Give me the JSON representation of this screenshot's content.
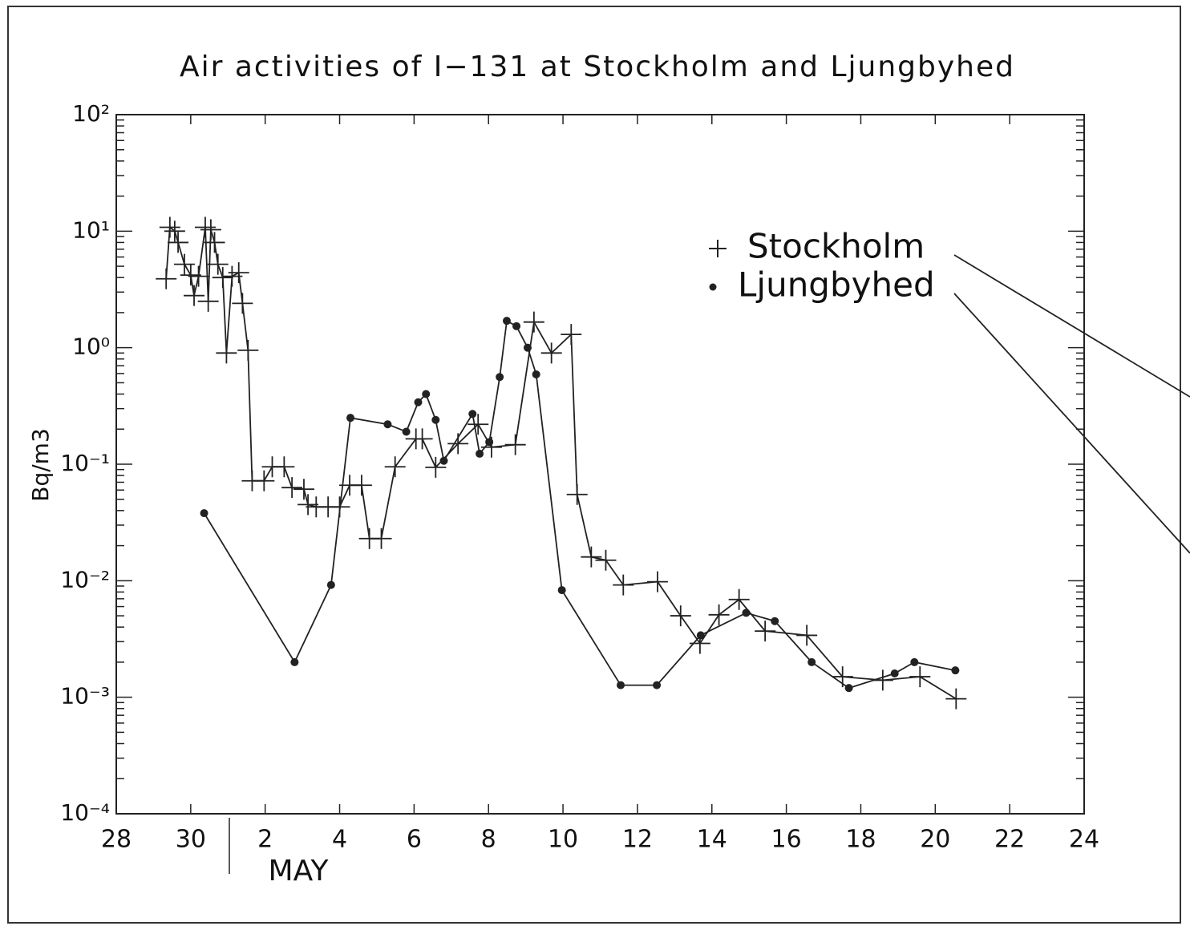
{
  "chart_data": {
    "type": "line",
    "title": "Air activities of I−131 at Stockholm and Ljungbyhed",
    "ylabel": "Bq/m3",
    "annotations": [
      "MAY"
    ],
    "log_y": true,
    "legend": "upper right",
    "xlim": [
      -2,
      24
    ],
    "xticks": [
      {
        "value": -2,
        "label": "28"
      },
      {
        "value": 0,
        "label": "30"
      },
      2,
      4,
      6,
      8,
      10,
      12,
      14,
      16,
      18,
      20,
      22,
      24
    ],
    "ylim": [
      0.0001,
      100
    ],
    "yticks": [
      {
        "value": 0.0001,
        "label": "10⁻⁴"
      },
      {
        "value": 0.001,
        "label": "10⁻³"
      },
      {
        "value": 0.01,
        "label": "10⁻²"
      },
      {
        "value": 0.1,
        "label": "10⁻¹"
      },
      {
        "value": 1,
        "label": "10⁰"
      },
      {
        "value": 10,
        "label": "10¹"
      },
      {
        "value": 100,
        "label": "10²"
      }
    ],
    "series": [
      {
        "name": "Stockholm",
        "color": "#222222",
        "marker": "plus",
        "x": [
          -0.66,
          -0.56,
          -0.43,
          -0.34,
          -0.17,
          0,
          0.09,
          0.21,
          0.39,
          0.47,
          0.54,
          0.64,
          0.73,
          0.86,
          0.96,
          1.11,
          1.29,
          1.39,
          1.54,
          1.65,
          1.97,
          2.19,
          2.51,
          2.72,
          3.04,
          3.15,
          3.37,
          3.69,
          4.0,
          4.27,
          4.59,
          4.8,
          5.12,
          5.49,
          6.05,
          6.22,
          6.58,
          7.18,
          7.72,
          8.08,
          8.72,
          9.22,
          9.69,
          10.22,
          10.38,
          10.76,
          11.15,
          11.62,
          12.54,
          13.16,
          13.68,
          14.19,
          14.73,
          15.43,
          16.55,
          17.51,
          18.59,
          19.59,
          20.56
        ],
        "values": [
          3.9,
          10.8,
          10,
          8,
          5.2,
          4.2,
          2.8,
          4.1,
          10.8,
          2.5,
          10.3,
          8,
          5.2,
          4,
          0.9,
          4.1,
          4.4,
          2.4,
          0.95,
          0.072,
          0.072,
          0.095,
          0.095,
          0.063,
          0.061,
          0.045,
          0.043,
          0.043,
          0.043,
          0.066,
          0.066,
          0.023,
          0.023,
          0.095,
          0.165,
          0.165,
          0.094,
          0.15,
          0.22,
          0.14,
          0.147,
          1.66,
          0.9,
          1.3,
          0.055,
          0.016,
          0.015,
          0.0092,
          0.0098,
          0.005,
          0.0029,
          0.0051,
          0.0069,
          0.0037,
          0.0034,
          0.0015,
          0.0014,
          0.0015,
          0.00097
        ]
      },
      {
        "name": "Ljungbyhed",
        "color": "#222222",
        "marker": "dot",
        "x": [
          0.36,
          2.79,
          3.77,
          4.29,
          5.29,
          5.79,
          6.11,
          6.32,
          6.58,
          6.8,
          7.57,
          7.76,
          8.02,
          8.3,
          8.49,
          8.75,
          9.05,
          9.28,
          9.97,
          11.55,
          12.52,
          13.7,
          14.92,
          15.69,
          16.68,
          17.68,
          18.91,
          19.44,
          20.54
        ],
        "values": [
          0.038,
          0.002,
          0.0092,
          0.25,
          0.22,
          0.19,
          0.34,
          0.4,
          0.24,
          0.107,
          0.27,
          0.123,
          0.155,
          0.56,
          1.7,
          1.53,
          1.0,
          0.59,
          0.0083,
          0.00127,
          0.00127,
          0.0034,
          0.0053,
          0.0045,
          0.002,
          0.0012,
          0.0016,
          0.002,
          0.0017
        ]
      }
    ]
  }
}
